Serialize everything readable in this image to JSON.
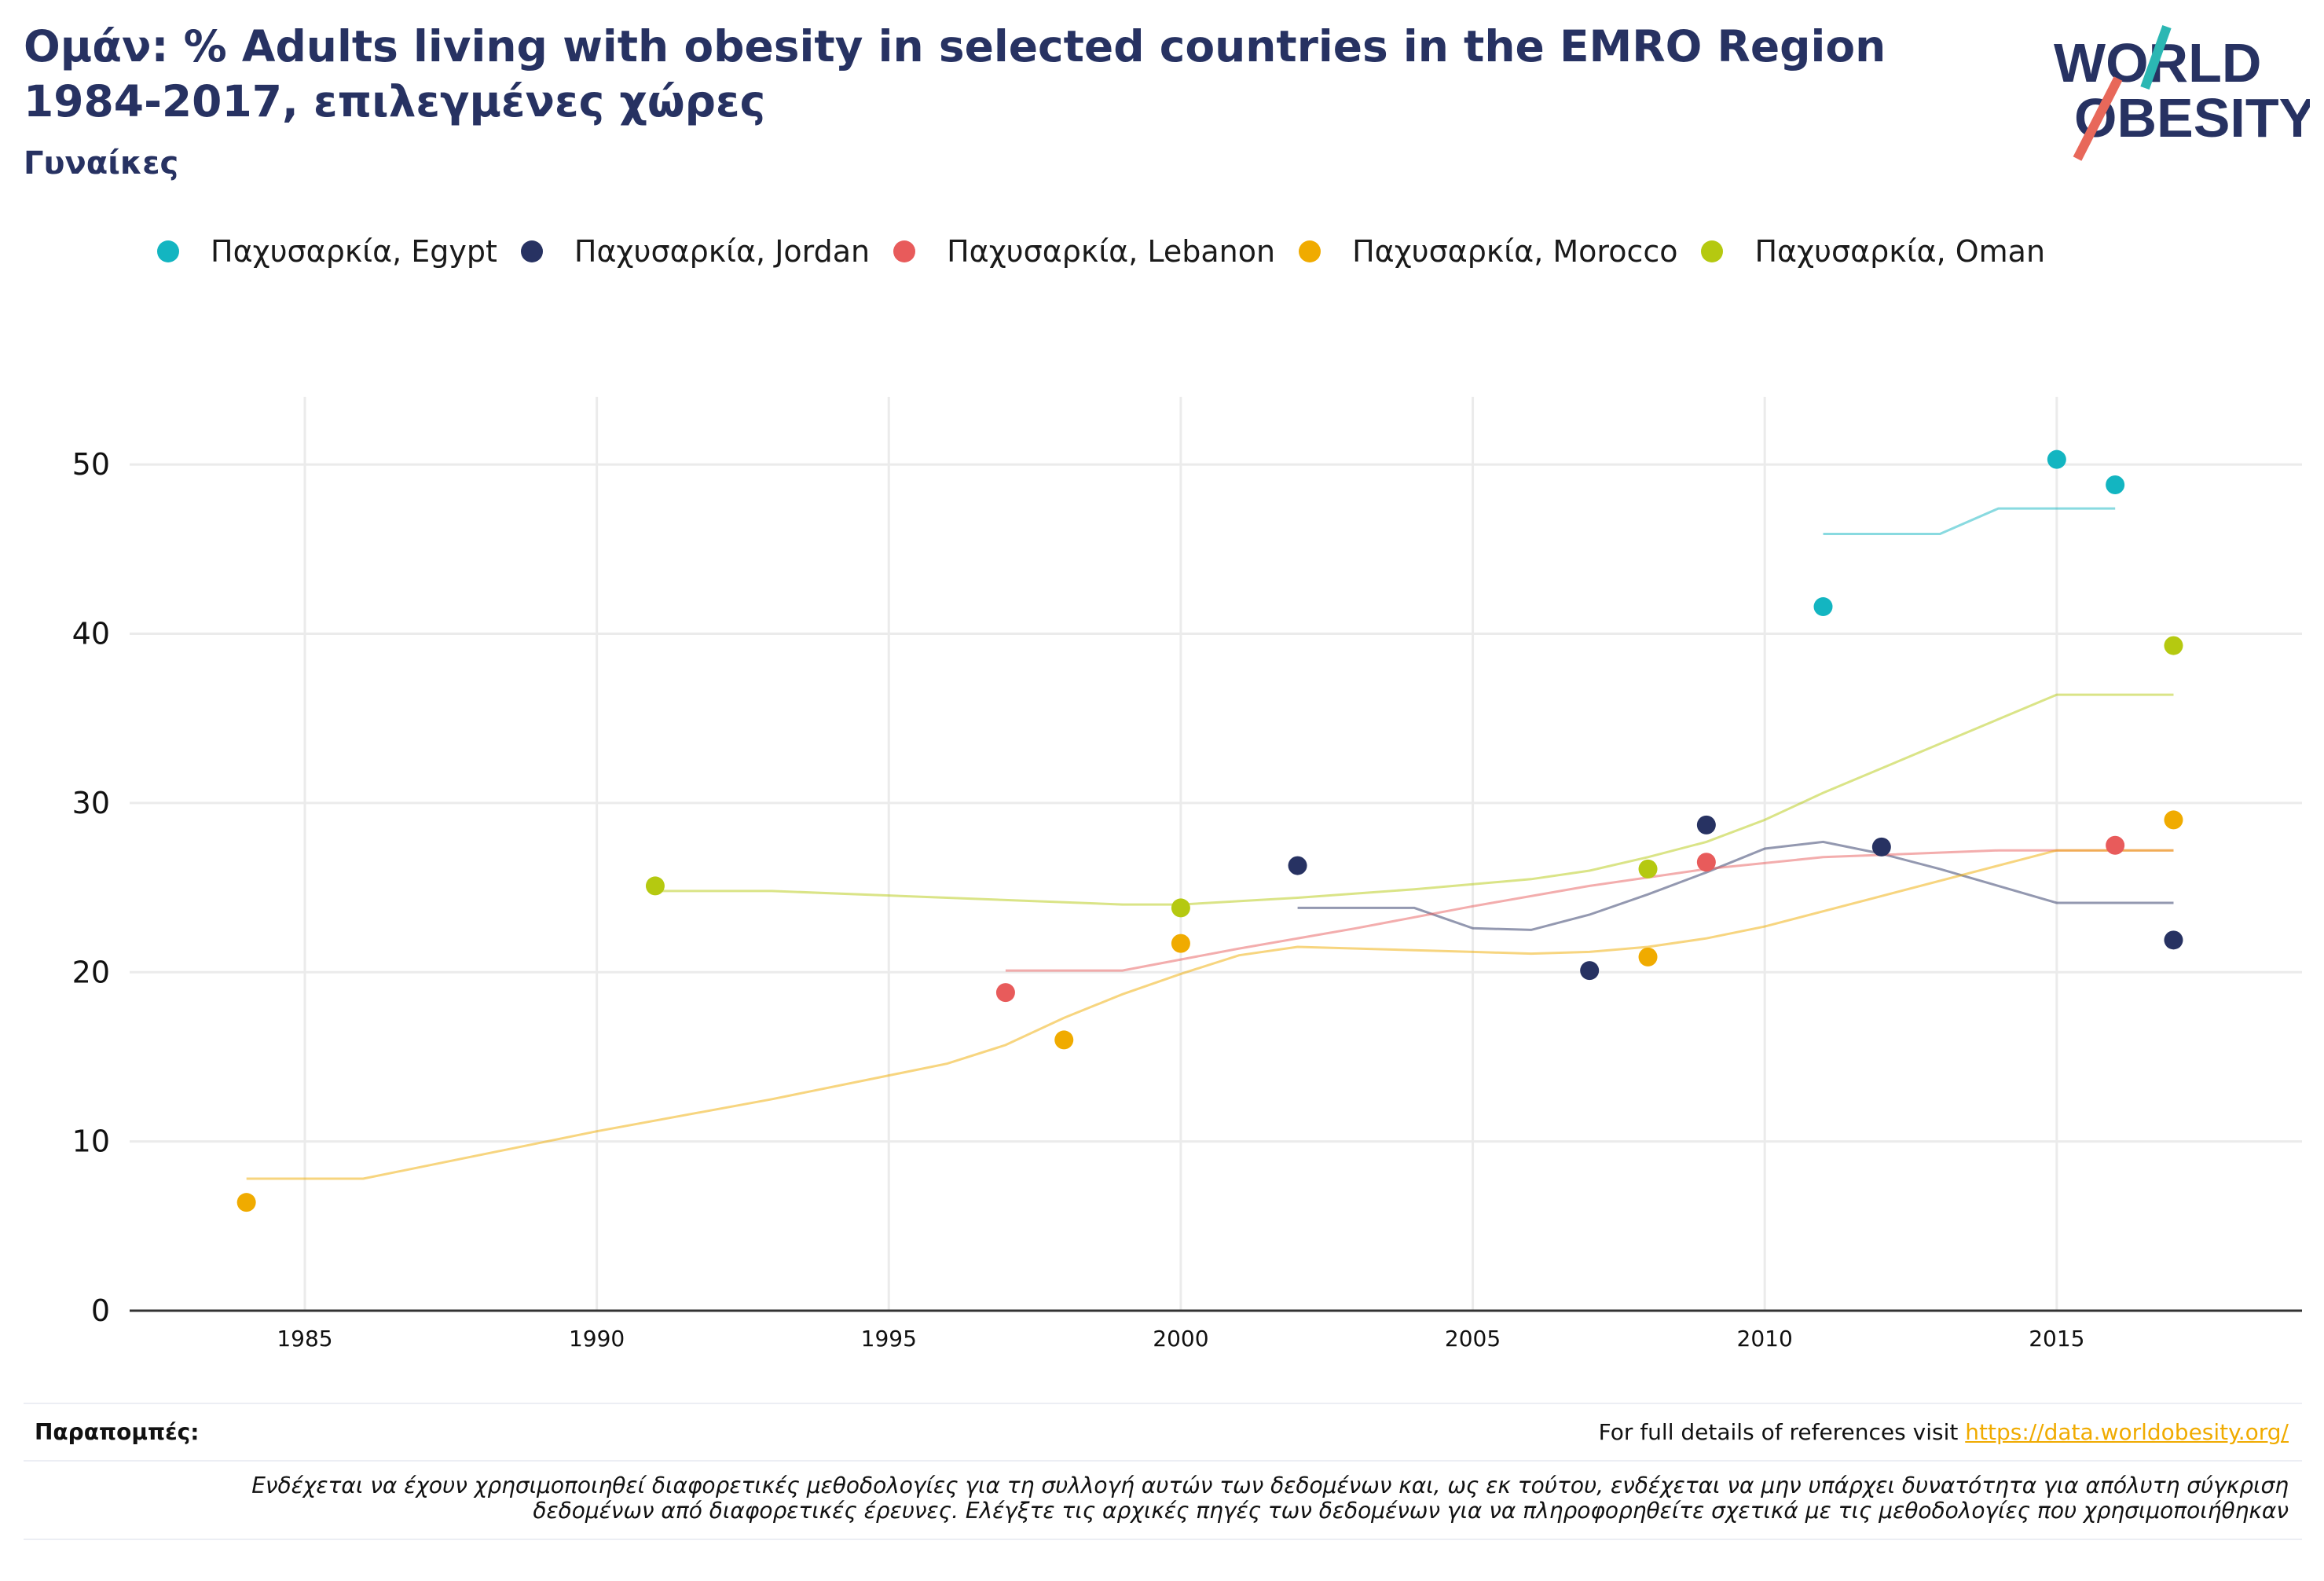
{
  "header": {
    "title": "Ομάν: % Adults living with obesity in selected countries in the EMRO Region 1984-2017, επιλεγμένες χώρες",
    "subtitle": "Γυναίκες"
  },
  "logo": {
    "line1": "WORLD",
    "line2": "OBESITY"
  },
  "colors": {
    "Egypt": "#13b5c1",
    "Jordan": "#273262",
    "Lebanon": "#e85b5b",
    "Morocco": "#f0ab00",
    "Oman": "#b5c910",
    "grid": "#ebebeb",
    "axis": "#333333",
    "brand_navy": "#273262",
    "brand_teal": "#2bb7b3",
    "brand_coral": "#e8685a"
  },
  "footer": {
    "refs_label": "Παραπομπές:",
    "refs_text": "For full details of references visit ",
    "refs_link": "https://data.worldobesity.org/",
    "disclaimer_line1": "Ενδέχεται να έχουν χρησιμοποιηθεί διαφορετικές μεθοδολογίες για τη συλλογή αυτών των δεδομένων και, ως εκ τούτου, ενδέχεται να μην υπάρχει δυνατότητα για απόλυτη σύγκριση",
    "disclaimer_line2": "δεδομένων από διαφορετικές έρευνες. Ελέγξτε τις αρχικές πηγές των δεδομένων για να πληροφορηθείτε σχετικά με τις μεθοδολογίες που χρησιμοποιήθηκαν"
  },
  "chart_data": {
    "type": "scatter",
    "xlim": [
      1982,
      2019.2
    ],
    "ylim": [
      0,
      54
    ],
    "x_ticks": [
      1985,
      1990,
      1995,
      2000,
      2005,
      2010,
      2015
    ],
    "y_ticks": [
      0,
      10,
      20,
      30,
      40,
      50
    ],
    "grid": true,
    "legend_position": "top",
    "series": [
      {
        "name": "Παχυσαρκία, Egypt",
        "key": "Egypt",
        "points": [
          [
            2011,
            41.6
          ],
          [
            2015,
            50.3
          ],
          [
            2016,
            48.8
          ]
        ],
        "trend": [
          [
            2011,
            45.9
          ],
          [
            2013,
            45.9
          ],
          [
            2014,
            47.4
          ],
          [
            2016,
            47.4
          ]
        ]
      },
      {
        "name": "Παχυσαρκία, Jordan",
        "key": "Jordan",
        "points": [
          [
            2002,
            26.3
          ],
          [
            2007,
            20.1
          ],
          [
            2009,
            28.7
          ],
          [
            2012,
            27.4
          ],
          [
            2017,
            21.9
          ]
        ],
        "trend": [
          [
            2002,
            23.8
          ],
          [
            2004,
            23.8
          ],
          [
            2005,
            22.6
          ],
          [
            2006,
            22.5
          ],
          [
            2007,
            23.4
          ],
          [
            2008,
            24.6
          ],
          [
            2009,
            25.9
          ],
          [
            2010,
            27.3
          ],
          [
            2011,
            27.7
          ],
          [
            2012,
            27.0
          ],
          [
            2013,
            26.1
          ],
          [
            2014,
            25.1
          ],
          [
            2015,
            24.1
          ],
          [
            2017,
            24.1
          ]
        ]
      },
      {
        "name": "Παχυσαρκία, Lebanon",
        "key": "Lebanon",
        "points": [
          [
            1997,
            18.8
          ],
          [
            2009,
            26.5
          ],
          [
            2016,
            27.5
          ]
        ],
        "trend": [
          [
            1997,
            20.1
          ],
          [
            1999,
            20.1
          ],
          [
            2001,
            21.4
          ],
          [
            2003,
            22.6
          ],
          [
            2005,
            23.9
          ],
          [
            2007,
            25.1
          ],
          [
            2009,
            26.1
          ],
          [
            2011,
            26.8
          ],
          [
            2014,
            27.2
          ],
          [
            2017,
            27.2
          ]
        ]
      },
      {
        "name": "Παχυσαρκία, Morocco",
        "key": "Morocco",
        "points": [
          [
            1984,
            6.4
          ],
          [
            1998,
            16.0
          ],
          [
            2000,
            21.7
          ],
          [
            2008,
            20.9
          ],
          [
            2017,
            29.0
          ]
        ],
        "trend": [
          [
            1984,
            7.8
          ],
          [
            1986,
            7.8
          ],
          [
            1990,
            10.6
          ],
          [
            1993,
            12.5
          ],
          [
            1996,
            14.6
          ],
          [
            1997,
            15.7
          ],
          [
            1998,
            17.3
          ],
          [
            1999,
            18.7
          ],
          [
            2000,
            19.9
          ],
          [
            2001,
            21.0
          ],
          [
            2002,
            21.5
          ],
          [
            2005,
            21.2
          ],
          [
            2006,
            21.1
          ],
          [
            2007,
            21.2
          ],
          [
            2008,
            21.5
          ],
          [
            2009,
            22.0
          ],
          [
            2010,
            22.7
          ],
          [
            2015,
            27.2
          ],
          [
            2017,
            27.2
          ]
        ]
      },
      {
        "name": "Παχυσαρκία, Oman",
        "key": "Oman",
        "points": [
          [
            1991,
            25.1
          ],
          [
            2000,
            23.8
          ],
          [
            2008,
            26.1
          ],
          [
            2017,
            39.3
          ]
        ],
        "trend": [
          [
            1991,
            24.8
          ],
          [
            1993,
            24.8
          ],
          [
            1996,
            24.4
          ],
          [
            1999,
            24.0
          ],
          [
            2000,
            24.0
          ],
          [
            2002,
            24.4
          ],
          [
            2004,
            24.9
          ],
          [
            2006,
            25.5
          ],
          [
            2007,
            26.0
          ],
          [
            2008,
            26.8
          ],
          [
            2009,
            27.7
          ],
          [
            2010,
            29.0
          ],
          [
            2011,
            30.6
          ],
          [
            2013,
            33.5
          ],
          [
            2015,
            36.4
          ],
          [
            2017,
            36.4
          ]
        ]
      }
    ]
  }
}
